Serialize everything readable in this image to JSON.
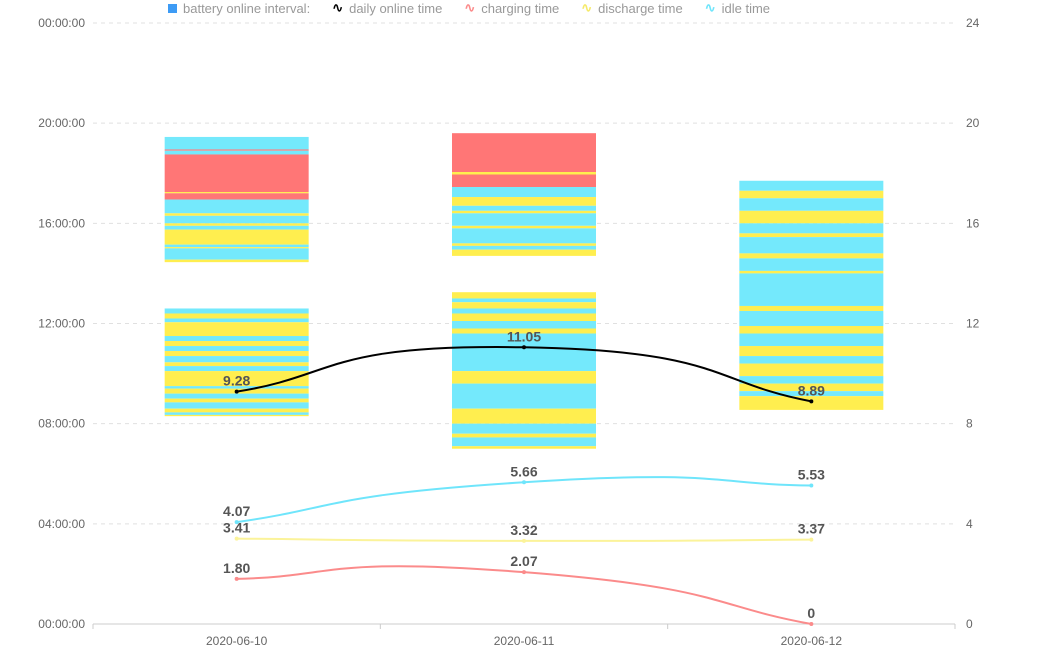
{
  "chart_data": {
    "type": "bar+line",
    "legend": {
      "title": "battery online interval:",
      "items": [
        {
          "label": "daily online time",
          "color": "#000000"
        },
        {
          "label": "charging time",
          "color": "#fb8b8b"
        },
        {
          "label": "discharge time",
          "color": "#fbf08f"
        },
        {
          "label": "idle time",
          "color": "#6fe5fb"
        }
      ],
      "placement": "top"
    },
    "state_colors": {
      "idle": "#74e9fc",
      "discharge": "#ffee4f",
      "charge": "#ff7676"
    },
    "categories": [
      "2020-06-10",
      "2020-06-11",
      "2020-06-12"
    ],
    "left_axis": {
      "ticks": [
        "00:00:00",
        "04:00:00",
        "08:00:00",
        "12:00:00",
        "16:00:00",
        "20:00:00",
        "00:00:00"
      ],
      "range_hours": [
        0,
        24
      ]
    },
    "right_axis": {
      "ticks": [
        "0",
        "4",
        "8",
        "12",
        "16",
        "20",
        "24"
      ],
      "range": [
        0,
        24
      ]
    },
    "intervals": [
      [
        [
          "idle",
          19.45,
          18.95
        ],
        [
          "charge",
          18.95,
          18.9
        ],
        [
          "idle",
          18.9,
          18.75
        ],
        [
          "charge",
          18.75,
          17.25
        ],
        [
          "discharge",
          17.25,
          17.2
        ],
        [
          "charge",
          17.2,
          16.95
        ],
        [
          "idle",
          16.95,
          16.4
        ],
        [
          "discharge",
          16.4,
          16.3
        ],
        [
          "idle",
          16.3,
          16.0
        ],
        [
          "discharge",
          16.0,
          15.9
        ],
        [
          "idle",
          15.9,
          15.75
        ],
        [
          "discharge",
          15.75,
          15.15
        ],
        [
          "idle",
          15.15,
          15.05
        ],
        [
          "discharge",
          15.05,
          15.0
        ],
        [
          "idle",
          15.0,
          14.55
        ],
        [
          "discharge",
          14.55,
          14.45
        ],
        [
          "idle",
          12.6,
          12.4
        ],
        [
          "discharge",
          12.4,
          12.2
        ],
        [
          "idle",
          12.2,
          12.05
        ],
        [
          "discharge",
          12.05,
          11.5
        ],
        [
          "idle",
          11.5,
          11.3
        ],
        [
          "discharge",
          11.3,
          11.1
        ],
        [
          "idle",
          11.1,
          10.9
        ],
        [
          "discharge",
          10.9,
          10.7
        ],
        [
          "idle",
          10.7,
          10.45
        ],
        [
          "discharge",
          10.45,
          10.3
        ],
        [
          "idle",
          10.3,
          10.1
        ],
        [
          "discharge",
          10.1,
          9.5
        ],
        [
          "idle",
          9.5,
          9.4
        ],
        [
          "discharge",
          9.4,
          9.2
        ],
        [
          "idle",
          9.2,
          9.0
        ],
        [
          "discharge",
          9.0,
          8.85
        ],
        [
          "idle",
          8.85,
          8.6
        ],
        [
          "discharge",
          8.6,
          8.45
        ],
        [
          "idle",
          8.45,
          8.35
        ],
        [
          "discharge",
          8.35,
          8.3
        ]
      ],
      [
        [
          "charge",
          19.6,
          18.05
        ],
        [
          "discharge",
          18.05,
          17.95
        ],
        [
          "charge",
          17.95,
          17.45
        ],
        [
          "idle",
          17.45,
          17.05
        ],
        [
          "discharge",
          17.05,
          16.7
        ],
        [
          "idle",
          16.7,
          16.5
        ],
        [
          "discharge",
          16.5,
          16.4
        ],
        [
          "idle",
          16.4,
          15.9
        ],
        [
          "discharge",
          15.9,
          15.8
        ],
        [
          "idle",
          15.8,
          15.2
        ],
        [
          "discharge",
          15.2,
          15.1
        ],
        [
          "idle",
          15.1,
          14.95
        ],
        [
          "discharge",
          14.95,
          14.7
        ],
        [
          "discharge",
          13.25,
          13.0
        ],
        [
          "idle",
          13.0,
          12.85
        ],
        [
          "discharge",
          12.85,
          12.6
        ],
        [
          "idle",
          12.6,
          12.4
        ],
        [
          "discharge",
          12.4,
          12.1
        ],
        [
          "idle",
          12.1,
          11.8
        ],
        [
          "discharge",
          11.8,
          11.6
        ],
        [
          "idle",
          11.6,
          10.1
        ],
        [
          "discharge",
          10.1,
          9.6
        ],
        [
          "idle",
          9.6,
          8.6
        ],
        [
          "discharge",
          8.6,
          8.0
        ],
        [
          "idle",
          8.0,
          7.6
        ],
        [
          "discharge",
          7.6,
          7.45
        ],
        [
          "idle",
          7.45,
          7.1
        ],
        [
          "discharge",
          7.1,
          7.0
        ]
      ],
      [
        [
          "idle",
          17.7,
          17.3
        ],
        [
          "discharge",
          17.3,
          17.0
        ],
        [
          "idle",
          17.0,
          16.5
        ],
        [
          "discharge",
          16.5,
          16.0
        ],
        [
          "idle",
          16.0,
          15.6
        ],
        [
          "discharge",
          15.6,
          15.45
        ],
        [
          "idle",
          15.45,
          14.8
        ],
        [
          "discharge",
          14.8,
          14.6
        ],
        [
          "idle",
          14.6,
          14.1
        ],
        [
          "discharge",
          14.1,
          14.0
        ],
        [
          "idle",
          14.0,
          12.7
        ],
        [
          "discharge",
          12.7,
          12.5
        ],
        [
          "idle",
          12.5,
          11.9
        ],
        [
          "discharge",
          11.9,
          11.6
        ],
        [
          "idle",
          11.6,
          11.1
        ],
        [
          "discharge",
          11.1,
          10.7
        ],
        [
          "idle",
          10.7,
          10.4
        ],
        [
          "discharge",
          10.4,
          9.9
        ],
        [
          "idle",
          9.9,
          9.6
        ],
        [
          "discharge",
          9.6,
          9.3
        ],
        [
          "idle",
          9.3,
          9.1
        ],
        [
          "discharge",
          9.1,
          8.55
        ]
      ]
    ],
    "series": [
      {
        "name": "daily online time",
        "color": "#000000",
        "values": [
          9.28,
          11.05,
          8.89
        ],
        "labels": [
          "9.28",
          "11.05",
          "8.89"
        ]
      },
      {
        "name": "idle time",
        "color": "#6fe5fb",
        "values": [
          4.07,
          5.66,
          5.53
        ],
        "labels": [
          "4.07",
          "5.66",
          "5.53"
        ]
      },
      {
        "name": "discharge time",
        "color": "#fbf39a",
        "values": [
          3.41,
          3.32,
          3.37
        ],
        "labels": [
          "3.41",
          "3.32",
          "3.37"
        ]
      },
      {
        "name": "charging time",
        "color": "#fb8b8b",
        "values": [
          1.8,
          2.07,
          0
        ],
        "labels": [
          "1.80",
          "2.07",
          "0"
        ]
      }
    ]
  }
}
